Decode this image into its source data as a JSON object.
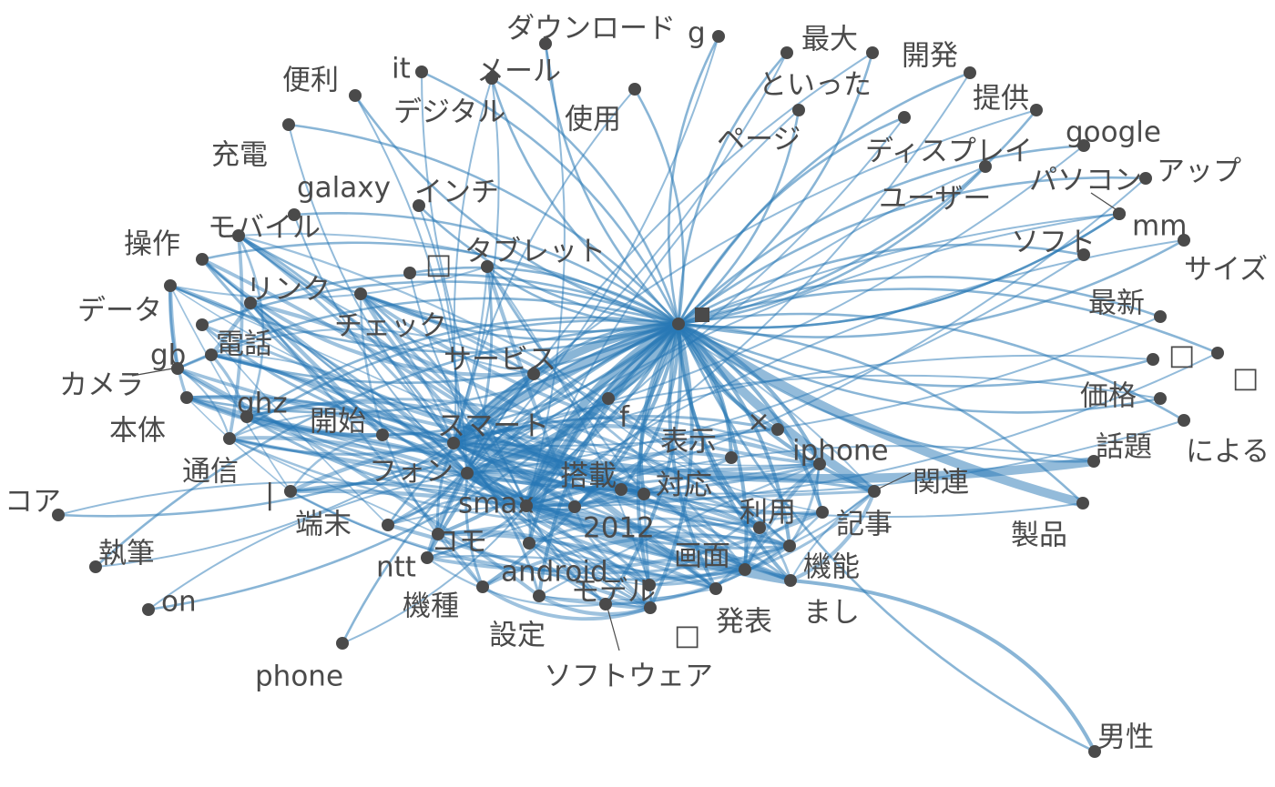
{
  "graph": {
    "edge_color": "#2878b5",
    "node_color": "#4a4a4a",
    "label_color": "#4a4a4a",
    "hubs": [
      "■",
      "スマート",
      "フォン",
      "smax"
    ],
    "nodes": [
      "■",
      "スマート",
      "フォン",
      "smax",
      "2012",
      "android",
      "搭載",
      "対応",
      "表示",
      "×",
      "iphone",
      "関連",
      "記事",
      "利用",
      "機能",
      "まし",
      "画面",
      "発表",
      "□",
      "モデル",
      "ソフトウェア",
      "設定",
      "機種",
      "ntt",
      "コモ",
      "端末",
      "|",
      "通信",
      "開始",
      "ghz",
      "本体",
      "カメラ",
      "gb",
      "電話",
      "データ",
      "操作",
      "モバイル",
      "リンク",
      "チェック",
      "サービス",
      "タブレット",
      "□",
      "インチ",
      "galaxy",
      "f",
      "充電",
      "便利",
      "it",
      "デジタル",
      "メール",
      "ダウンロード",
      "使用",
      "g",
      "ページ",
      "といった",
      "最大",
      "開発",
      "提供",
      "ディスプレイ",
      "ユーザー",
      "google",
      "パソコン",
      "アップ",
      "mm",
      "ソフト",
      "サイズ",
      "最新",
      "□",
      "□",
      "価格",
      "による",
      "話題",
      "製品",
      "男性",
      "コア",
      "執筆",
      "on",
      "phone"
    ]
  }
}
